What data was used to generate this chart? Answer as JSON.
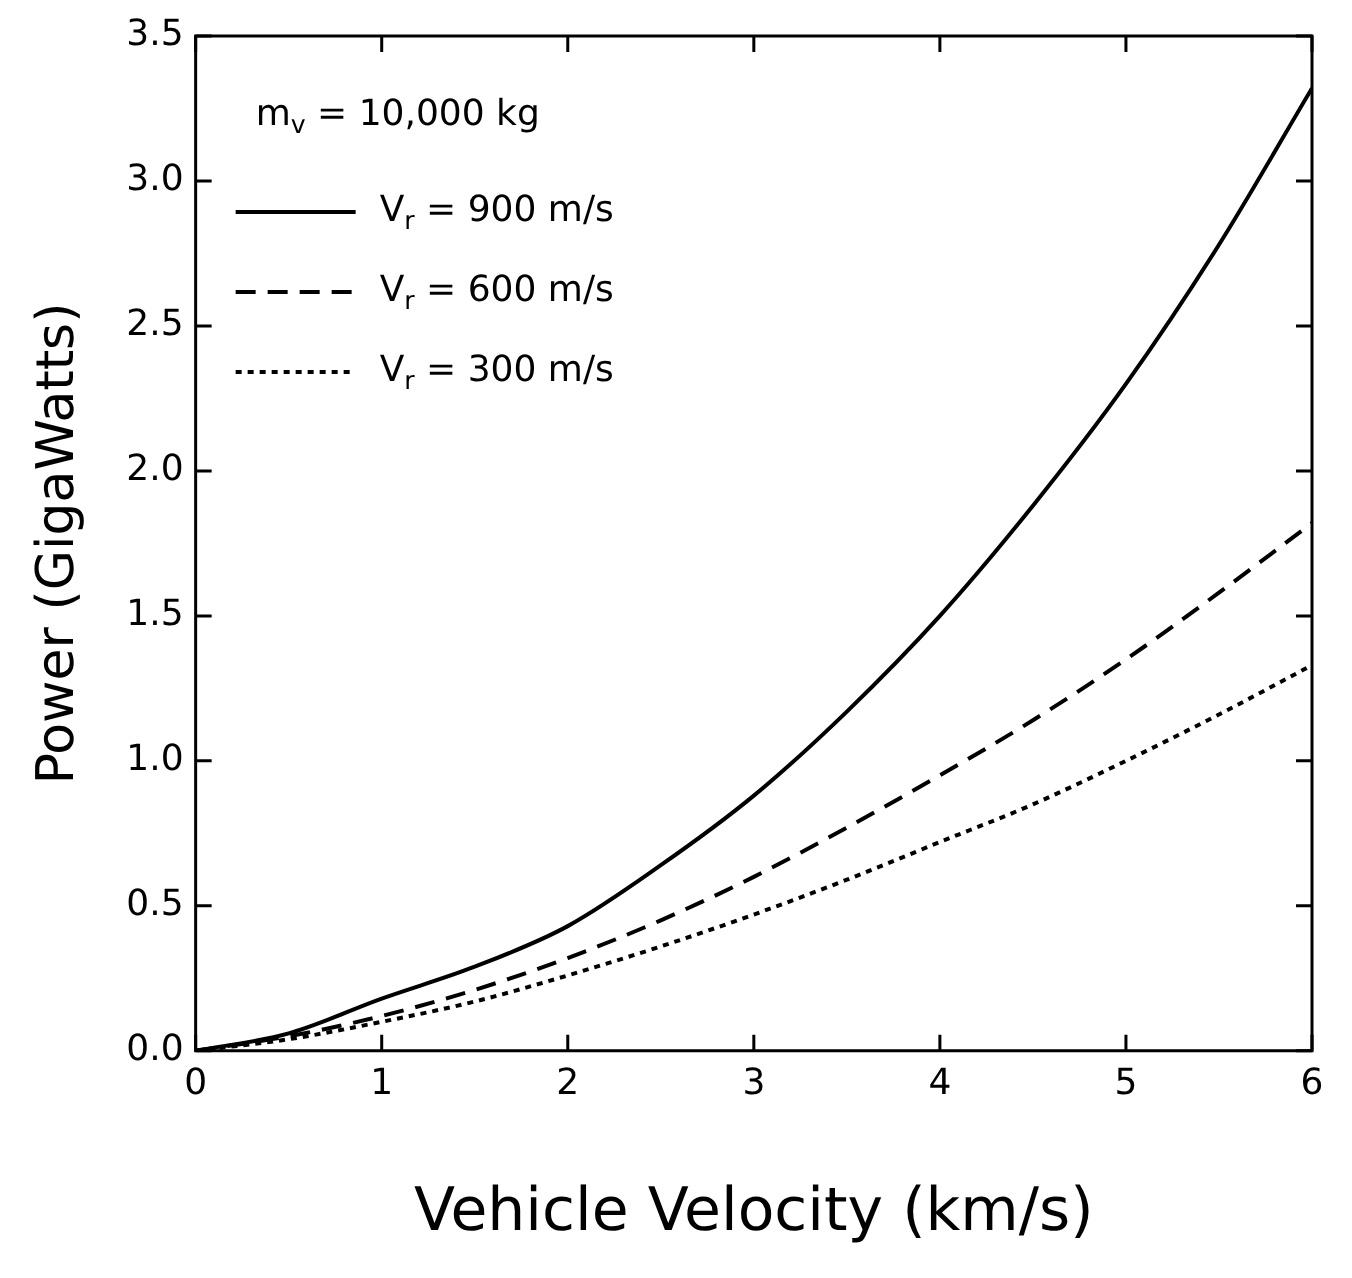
{
  "chart_data": {
    "type": "line",
    "xlabel": "Vehicle Velocity (km/s)",
    "ylabel": "Power (GigaWatts)",
    "annotations": [
      "m$_{v}$ = 10,000 kg"
    ],
    "x": [
      0,
      0.5,
      1,
      1.5,
      2,
      2.5,
      3,
      3.5,
      4,
      4.5,
      5,
      5.5,
      6
    ],
    "series": [
      {
        "name": "V$_{r}$ = 900 m/s",
        "color": "#000000",
        "line_style": "solid",
        "values": [
          0,
          0.06,
          0.18,
          0.29,
          0.43,
          0.64,
          0.88,
          1.17,
          1.5,
          1.88,
          2.3,
          2.78,
          3.32
        ]
      },
      {
        "name": "V$_{r}$ = 600 m/s",
        "color": "#000000",
        "line_style": "dashed",
        "values": [
          0,
          0.05,
          0.12,
          0.21,
          0.32,
          0.45,
          0.6,
          0.77,
          0.95,
          1.14,
          1.35,
          1.58,
          1.82
        ]
      },
      {
        "name": "V$_{r}$ = 300 m/s",
        "color": "#000000",
        "line_style": "dotted",
        "values": [
          0,
          0.04,
          0.1,
          0.17,
          0.26,
          0.36,
          0.47,
          0.59,
          0.72,
          0.85,
          1.0,
          1.16,
          1.33
        ]
      }
    ],
    "xlim": [
      0,
      6
    ],
    "xticks": [
      0,
      1,
      2,
      3,
      4,
      5,
      6
    ],
    "ylim": [
      0,
      3.5
    ],
    "yticks": [
      {
        "value": 0,
        "label": "0.0"
      },
      {
        "value": 0.5,
        "label": "0.5"
      },
      {
        "value": 1,
        "label": "1.0"
      },
      {
        "value": 1.5,
        "label": "1.5"
      },
      {
        "value": 2,
        "label": "2.0"
      },
      {
        "value": 2.5,
        "label": "2.5"
      },
      {
        "value": 3,
        "label": "3.0"
      },
      {
        "value": 3.5,
        "label": "3.5"
      }
    ],
    "grid": false,
    "legend": "top left",
    "marker": "none"
  }
}
